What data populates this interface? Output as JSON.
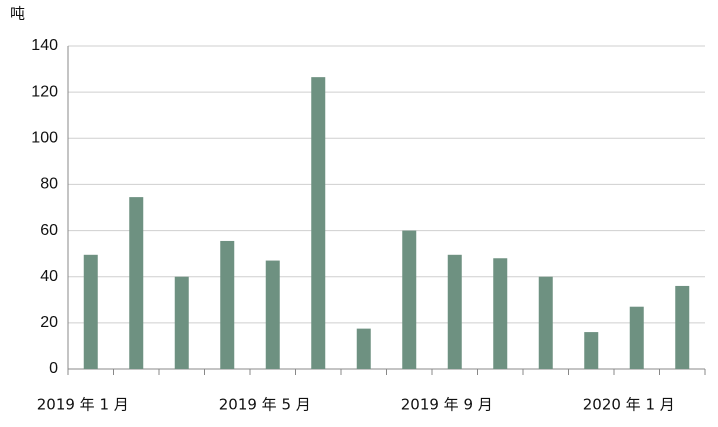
{
  "chart_data": {
    "type": "bar",
    "y_label": "吨",
    "categories": [
      "2019 年 1 月",
      null,
      null,
      null,
      "2019 年 5 月",
      null,
      null,
      null,
      "2019 年 9 月",
      null,
      null,
      null,
      "2020 年 1 月",
      null
    ],
    "values": [
      49.5,
      74.5,
      40,
      55.5,
      47,
      126.5,
      17.5,
      60,
      49.5,
      48,
      40,
      16,
      27,
      36
    ],
    "color": "#6e9181",
    "ylim": [
      0,
      140
    ],
    "yticks": [
      0,
      20,
      40,
      60,
      80,
      100,
      120,
      140
    ],
    "grid": true
  }
}
